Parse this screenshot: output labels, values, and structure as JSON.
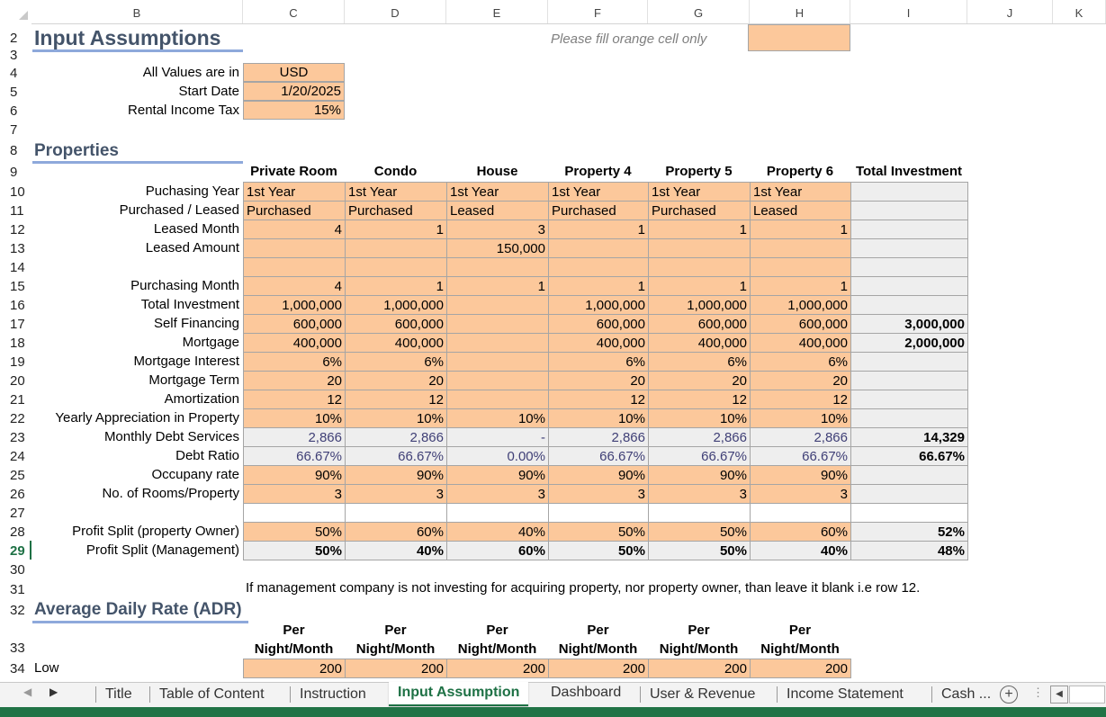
{
  "columns": [
    "B",
    "C",
    "D",
    "E",
    "F",
    "G",
    "H",
    "I",
    "J",
    "K"
  ],
  "rows": [
    "2",
    "3",
    "4",
    "5",
    "6",
    "7",
    "8",
    "9",
    "10",
    "11",
    "12",
    "13",
    "14",
    "15",
    "16",
    "17",
    "18",
    "19",
    "20",
    "21",
    "22",
    "23",
    "24",
    "25",
    "26",
    "27",
    "28",
    "29",
    "30",
    "31",
    "32",
    "33",
    "34"
  ],
  "selected_row": "29",
  "header": {
    "title": "Input Assumptions",
    "note": "Please fill orange cell only"
  },
  "general": {
    "labels": [
      "All Values are in",
      "Start Date",
      "Rental Income Tax"
    ],
    "values": [
      "USD",
      "1/20/2025",
      "15%"
    ]
  },
  "properties": {
    "title": "Properties",
    "headers": [
      "Private Room",
      "Condo",
      "House",
      "Property 4",
      "Property 5",
      "Property 6",
      "Total Investment"
    ],
    "rows": [
      {
        "label": "Puchasing Year",
        "cells": [
          "1st Year",
          "1st Year",
          "1st Year",
          "1st Year",
          "1st Year",
          "1st Year"
        ],
        "total": ""
      },
      {
        "label": "Purchased / Leased",
        "cells": [
          "Purchased",
          "Purchased",
          "Leased",
          "Purchased",
          "Purchased",
          "Leased"
        ],
        "total": ""
      },
      {
        "label": "Leased Month",
        "cells": [
          "4",
          "1",
          "3",
          "1",
          "1",
          "1"
        ],
        "total": ""
      },
      {
        "label": "Leased Amount",
        "cells": [
          "",
          "",
          "150,000",
          "",
          "",
          ""
        ],
        "total": ""
      },
      {
        "label": "",
        "cells": [
          "",
          "",
          "",
          "",
          "",
          ""
        ],
        "total": ""
      },
      {
        "label": "Purchasing Month",
        "cells": [
          "4",
          "1",
          "1",
          "1",
          "1",
          "1"
        ],
        "total": ""
      },
      {
        "label": "Total Investment",
        "cells": [
          "1,000,000",
          "1,000,000",
          "",
          "1,000,000",
          "1,000,000",
          "1,000,000"
        ],
        "total": ""
      },
      {
        "label": "Self Financing",
        "cells": [
          "600,000",
          "600,000",
          "",
          "600,000",
          "600,000",
          "600,000"
        ],
        "total": "3,000,000"
      },
      {
        "label": "Mortgage",
        "cells": [
          "400,000",
          "400,000",
          "",
          "400,000",
          "400,000",
          "400,000"
        ],
        "total": "2,000,000"
      },
      {
        "label": "Mortgage Interest",
        "cells": [
          "6%",
          "6%",
          "",
          "6%",
          "6%",
          "6%"
        ],
        "total": ""
      },
      {
        "label": "Mortgage Term",
        "cells": [
          "20",
          "20",
          "",
          "20",
          "20",
          "20"
        ],
        "total": ""
      },
      {
        "label": "Amortization",
        "cells": [
          "12",
          "12",
          "",
          "12",
          "12",
          "12"
        ],
        "total": ""
      },
      {
        "label": "Yearly Appreciation in Property",
        "cells": [
          "10%",
          "10%",
          "10%",
          "10%",
          "10%",
          "10%"
        ],
        "total": ""
      },
      {
        "label": "Monthly Debt Services",
        "cells": [
          "2,866",
          "2,866",
          "-",
          "2,866",
          "2,866",
          "2,866"
        ],
        "total": "14,329"
      },
      {
        "label": "Debt Ratio",
        "cells": [
          "66.67%",
          "66.67%",
          "0.00%",
          "66.67%",
          "66.67%",
          "66.67%"
        ],
        "total": "66.67%"
      },
      {
        "label": "Occupany rate",
        "cells": [
          "90%",
          "90%",
          "90%",
          "90%",
          "90%",
          "90%"
        ],
        "total": ""
      },
      {
        "label": "No. of Rooms/Property",
        "cells": [
          "3",
          "3",
          "3",
          "3",
          "3",
          "3"
        ],
        "total": ""
      },
      {
        "label": "",
        "cells": [
          "",
          "",
          "",
          "",
          "",
          ""
        ],
        "total": ""
      },
      {
        "label": "Profit Split (property Owner)",
        "cells": [
          "50%",
          "60%",
          "40%",
          "50%",
          "50%",
          "60%"
        ],
        "total": "52%"
      },
      {
        "label": "Profit Split (Management)",
        "cells": [
          "50%",
          "40%",
          "60%",
          "50%",
          "50%",
          "40%"
        ],
        "total": "48%"
      }
    ]
  },
  "management_note": "If management company is not investing for acquiring property, nor property owner, than leave it blank i.e row 12.",
  "adr": {
    "title": "Average Daily Rate (ADR)",
    "header_line1": [
      "Per",
      "Per",
      "Per",
      "Per",
      "Per",
      "Per"
    ],
    "header_line2": [
      "Night/Month",
      "Night/Month",
      "Night/Month",
      "Night/Month",
      "Night/Month",
      "Night/Month"
    ],
    "rows": [
      {
        "label": "Low",
        "cells": [
          "200",
          "200",
          "200",
          "200",
          "200",
          "200"
        ]
      }
    ]
  },
  "tabs": [
    "Title",
    "Table of Content",
    "Instruction",
    "Input Assumption",
    "Dashboard",
    "User & Revenue",
    "Income Statement",
    "Cash ..."
  ],
  "active_tab": "Input Assumption",
  "colors": {
    "input_fill": "#fcc89b",
    "calc_fill": "#eeeeee",
    "title_text": "#44546a",
    "excel_green": "#217346"
  }
}
